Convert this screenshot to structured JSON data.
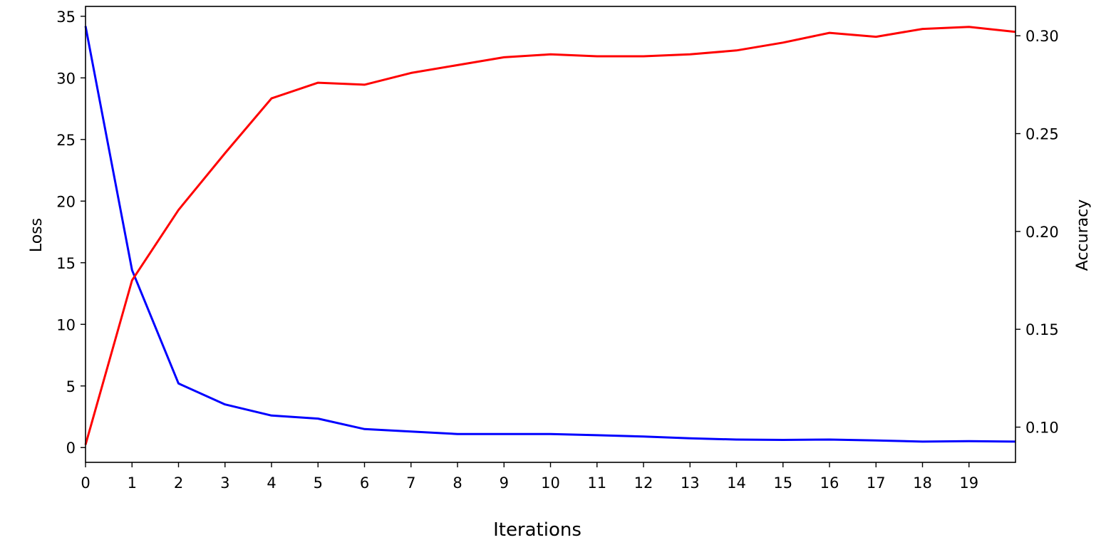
{
  "chart_data": {
    "type": "line",
    "title": "",
    "xlabel": "Iterations",
    "ylabel_left": "Loss",
    "ylabel_right": "Accuracy",
    "x_ticks": [
      0,
      1,
      2,
      3,
      4,
      5,
      6,
      7,
      8,
      9,
      10,
      11,
      12,
      13,
      14,
      15,
      16,
      17,
      18,
      19
    ],
    "xlim": [
      0,
      20
    ],
    "ylim_left": [
      -1.2,
      35.8
    ],
    "yticks_left": [
      0,
      5,
      10,
      15,
      20,
      25,
      30,
      35
    ],
    "ylim_right": [
      0.082,
      0.315
    ],
    "yticks_right": [
      "0.10",
      "0.15",
      "0.20",
      "0.25",
      "0.30"
    ],
    "grid": false,
    "series": [
      {
        "axis": "left",
        "color": "#0000ff",
        "x": [
          0,
          1,
          2,
          3,
          4,
          5,
          6,
          7,
          8,
          9,
          10,
          11,
          12,
          13,
          14,
          15,
          16,
          17,
          18,
          19,
          20
        ],
        "values": [
          34.2,
          14.4,
          5.2,
          3.5,
          2.6,
          2.35,
          1.5,
          1.3,
          1.1,
          1.1,
          1.1,
          1.0,
          0.9,
          0.75,
          0.65,
          0.62,
          0.65,
          0.58,
          0.48,
          0.52,
          0.48
        ]
      },
      {
        "axis": "right",
        "color": "#ff0000",
        "x": [
          0,
          1,
          2,
          3,
          4,
          5,
          6,
          7,
          8,
          9,
          10,
          11,
          12,
          13,
          14,
          15,
          16,
          17,
          18,
          19,
          20
        ],
        "values": [
          0.091,
          0.175,
          0.211,
          0.24,
          0.268,
          0.276,
          0.275,
          0.281,
          0.285,
          0.289,
          0.2905,
          0.2895,
          0.2895,
          0.2905,
          0.2925,
          0.2965,
          0.3015,
          0.2995,
          0.3035,
          0.3045,
          0.302
        ]
      }
    ]
  }
}
